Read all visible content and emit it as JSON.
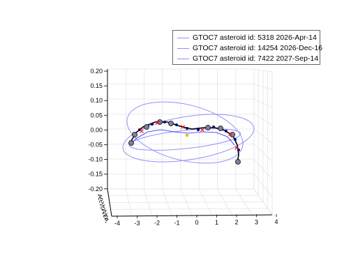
{
  "chart_data": {
    "type": "line",
    "title": "",
    "xlabel": "",
    "ylabel": "",
    "zlabel": "",
    "projection": "3d",
    "grid": true,
    "legend_placement": "top-right",
    "series": [
      {
        "name": "GTOC7 asteroid id: 5318 2026-Apr-14",
        "color": "#8f8fff"
      },
      {
        "name": "GTOC7 asteroid id: 14254 2026-Dec-16",
        "color": "#8f8fff"
      },
      {
        "name": "GTOC7 asteroid id: 7422 2027-Sep-14",
        "color": "#8f8fff"
      }
    ],
    "x_ticks": [
      "-4",
      "-3",
      "-2",
      "-1",
      "0",
      "1",
      "2",
      "3",
      "4"
    ],
    "z_ticks": [
      "0.20",
      "0.15",
      "0.10",
      "0.05",
      "0.00",
      "-0.05",
      "-0.10",
      "-0.15",
      "-0.20"
    ],
    "y_ticks": [
      "4",
      "3",
      "2",
      "1",
      "0",
      "-1",
      "-2",
      "-3",
      "-4"
    ],
    "xlim": [
      -4,
      4
    ],
    "zlim": [
      -0.2,
      0.2
    ],
    "sun_color": "#e0c000",
    "trajectory_color": "#000000",
    "marker_colors": [
      "#000080",
      "#ff0000",
      "#8080a0"
    ]
  }
}
